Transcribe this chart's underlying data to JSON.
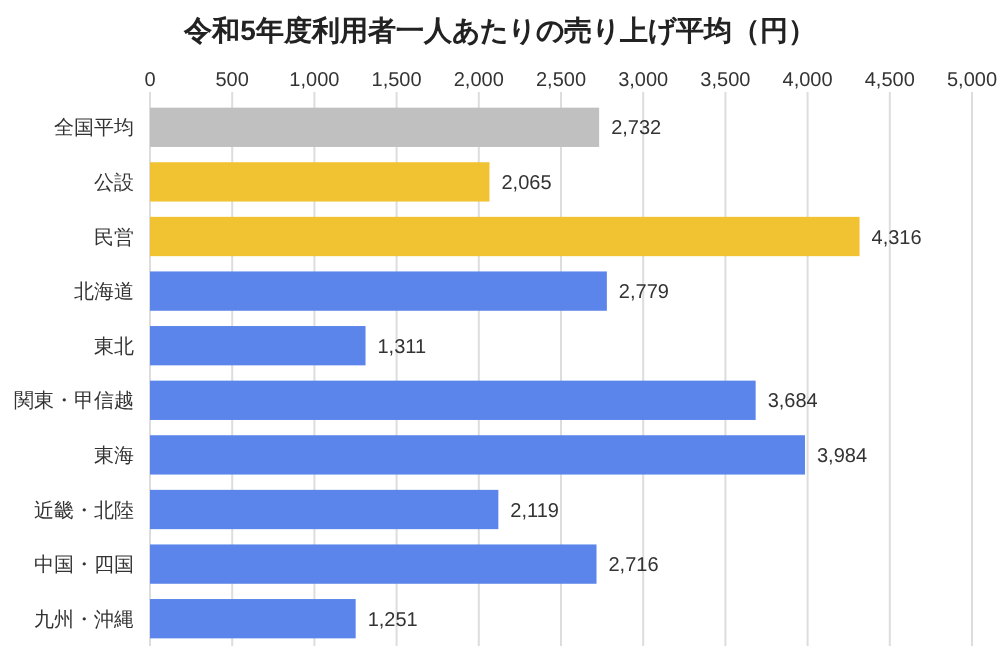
{
  "chart_data": {
    "type": "bar",
    "orientation": "horizontal",
    "title": "令和5年度利用者一人あたりの売り上げ平均（円）",
    "categories": [
      "全国平均",
      "公設",
      "民営",
      "北海道",
      "東北",
      "関東・甲信越",
      "東海",
      "近畿・北陸",
      "中国・四国",
      "九州・沖縄"
    ],
    "values": [
      2732,
      2065,
      4316,
      2779,
      1311,
      3684,
      3984,
      2119,
      2716,
      1251
    ],
    "value_labels": [
      "2,732",
      "2,065",
      "4,316",
      "2,779",
      "1,311",
      "3,684",
      "3,984",
      "2,119",
      "2,716",
      "1,251"
    ],
    "colors": [
      "#c0c0c0",
      "#f1c232",
      "#f1c232",
      "#5b85eb",
      "#5b85eb",
      "#5b85eb",
      "#5b85eb",
      "#5b85eb",
      "#5b85eb",
      "#5b85eb"
    ],
    "xlim": [
      0,
      5000
    ],
    "xticks": [
      0,
      500,
      {
        "value": 1000,
        "label": "1,000"
      },
      {
        "value": 1500,
        "label": "1,500"
      },
      {
        "value": 2000,
        "label": "2,000"
      },
      {
        "value": 2500,
        "label": "2,500"
      },
      {
        "value": 3000,
        "label": "3,000"
      },
      {
        "value": 3500,
        "label": "3,500"
      },
      {
        "value": 4000,
        "label": "4,000"
      },
      {
        "value": 4500,
        "label": "4,500"
      },
      {
        "value": 5000,
        "label": "5,000"
      }
    ],
    "grid": true
  }
}
